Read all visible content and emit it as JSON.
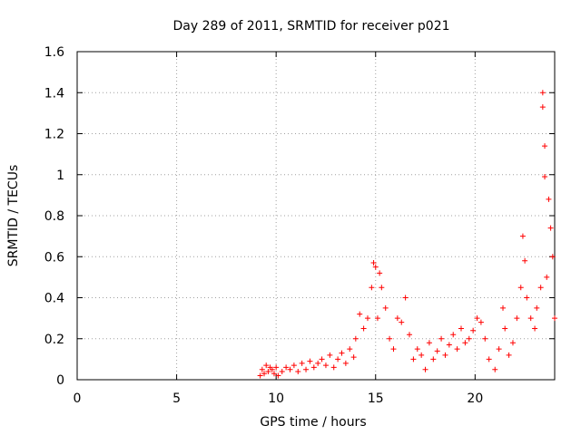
{
  "chart_data": {
    "type": "scatter",
    "title": "Day 289 of 2011, SRMTID for receiver p021",
    "xlabel": "GPS time / hours",
    "ylabel": "SRMTID / TECUs",
    "xlim": [
      0,
      24
    ],
    "ylim": [
      0,
      1.6
    ],
    "x_ticks": [
      0,
      5,
      10,
      15,
      20
    ],
    "x_tick_labels": [
      "0",
      "5",
      "10",
      "15",
      "20"
    ],
    "y_ticks": [
      0,
      0.2,
      0.4,
      0.6,
      0.8,
      1,
      1.2,
      1.4,
      1.6
    ],
    "y_tick_labels": [
      "0",
      "0.2",
      "0.4",
      "0.6",
      "0.8",
      "1",
      "1.2",
      "1.4",
      "1.6"
    ],
    "grid": true,
    "marker": "+",
    "marker_color": "#ff0000",
    "series": [
      {
        "name": "SRMTID",
        "points": [
          [
            9.2,
            0.02
          ],
          [
            9.3,
            0.05
          ],
          [
            9.4,
            0.03
          ],
          [
            9.5,
            0.07
          ],
          [
            9.6,
            0.04
          ],
          [
            9.7,
            0.06
          ],
          [
            9.8,
            0.05
          ],
          [
            9.9,
            0.03
          ],
          [
            10.0,
            0.06
          ],
          [
            10.1,
            0.02
          ],
          [
            10.3,
            0.04
          ],
          [
            10.5,
            0.06
          ],
          [
            10.7,
            0.05
          ],
          [
            10.9,
            0.07
          ],
          [
            11.1,
            0.04
          ],
          [
            11.3,
            0.08
          ],
          [
            11.5,
            0.05
          ],
          [
            11.7,
            0.09
          ],
          [
            11.9,
            0.06
          ],
          [
            12.1,
            0.08
          ],
          [
            12.3,
            0.1
          ],
          [
            12.5,
            0.07
          ],
          [
            12.7,
            0.12
          ],
          [
            12.9,
            0.06
          ],
          [
            13.1,
            0.1
          ],
          [
            13.3,
            0.13
          ],
          [
            13.5,
            0.08
          ],
          [
            13.7,
            0.15
          ],
          [
            13.9,
            0.11
          ],
          [
            14.0,
            0.2
          ],
          [
            14.2,
            0.32
          ],
          [
            14.4,
            0.25
          ],
          [
            14.6,
            0.3
          ],
          [
            14.8,
            0.45
          ],
          [
            14.9,
            0.57
          ],
          [
            15.0,
            0.55
          ],
          [
            15.1,
            0.3
          ],
          [
            15.2,
            0.52
          ],
          [
            15.3,
            0.45
          ],
          [
            15.5,
            0.35
          ],
          [
            15.7,
            0.2
          ],
          [
            15.9,
            0.15
          ],
          [
            16.1,
            0.3
          ],
          [
            16.3,
            0.28
          ],
          [
            16.5,
            0.4
          ],
          [
            16.7,
            0.22
          ],
          [
            16.9,
            0.1
          ],
          [
            17.1,
            0.15
          ],
          [
            17.3,
            0.12
          ],
          [
            17.5,
            0.05
          ],
          [
            17.7,
            0.18
          ],
          [
            17.9,
            0.1
          ],
          [
            18.1,
            0.14
          ],
          [
            18.3,
            0.2
          ],
          [
            18.5,
            0.12
          ],
          [
            18.7,
            0.17
          ],
          [
            18.9,
            0.22
          ],
          [
            19.1,
            0.15
          ],
          [
            19.3,
            0.25
          ],
          [
            19.5,
            0.18
          ],
          [
            19.7,
            0.2
          ],
          [
            19.9,
            0.24
          ],
          [
            20.1,
            0.3
          ],
          [
            20.3,
            0.28
          ],
          [
            20.5,
            0.2
          ],
          [
            20.7,
            0.1
          ],
          [
            21.0,
            0.05
          ],
          [
            21.2,
            0.15
          ],
          [
            21.4,
            0.35
          ],
          [
            21.5,
            0.25
          ],
          [
            21.7,
            0.12
          ],
          [
            21.9,
            0.18
          ],
          [
            22.1,
            0.3
          ],
          [
            22.3,
            0.45
          ],
          [
            22.4,
            0.7
          ],
          [
            22.5,
            0.58
          ],
          [
            22.6,
            0.4
          ],
          [
            22.8,
            0.3
          ],
          [
            23.0,
            0.25
          ],
          [
            23.1,
            0.35
          ],
          [
            23.3,
            0.45
          ],
          [
            23.4,
            1.4
          ],
          [
            23.4,
            1.33
          ],
          [
            23.5,
            1.14
          ],
          [
            23.5,
            0.99
          ],
          [
            23.6,
            0.5
          ],
          [
            23.7,
            0.88
          ],
          [
            23.8,
            0.74
          ],
          [
            23.9,
            0.6
          ],
          [
            24.0,
            0.3
          ]
        ]
      }
    ]
  }
}
